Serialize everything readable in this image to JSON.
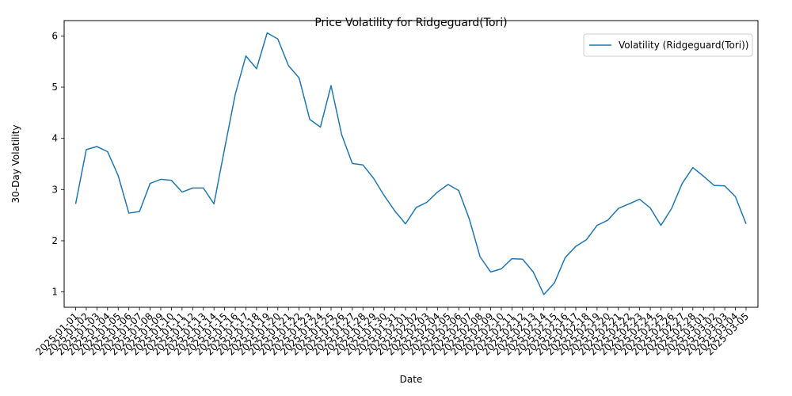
{
  "chart_data": {
    "type": "line",
    "title": "Price Volatility for Ridgeguard(Tori)",
    "xlabel": "Date",
    "ylabel": "30-Day Volatility",
    "ylim": [
      0.7,
      6.3
    ],
    "yticks": [
      1,
      2,
      3,
      4,
      5,
      6
    ],
    "grid": false,
    "legend_placement": "top-right",
    "x": [
      "2025-01-01",
      "2025-01-02",
      "2025-01-03",
      "2025-01-04",
      "2025-01-05",
      "2025-01-06",
      "2025-01-07",
      "2025-01-08",
      "2025-01-09",
      "2025-01-10",
      "2025-01-11",
      "2025-01-12",
      "2025-01-13",
      "2025-01-14",
      "2025-01-15",
      "2025-01-16",
      "2025-01-17",
      "2025-01-18",
      "2025-01-19",
      "2025-01-20",
      "2025-01-21",
      "2025-01-22",
      "2025-01-23",
      "2025-01-24",
      "2025-01-25",
      "2025-01-26",
      "2025-01-27",
      "2025-01-28",
      "2025-01-29",
      "2025-01-30",
      "2025-01-31",
      "2025-02-01",
      "2025-02-02",
      "2025-02-03",
      "2025-02-04",
      "2025-02-05",
      "2025-02-06",
      "2025-02-07",
      "2025-02-08",
      "2025-02-09",
      "2025-02-10",
      "2025-02-11",
      "2025-02-12",
      "2025-02-13",
      "2025-02-14",
      "2025-02-15",
      "2025-02-16",
      "2025-02-17",
      "2025-02-18",
      "2025-02-19",
      "2025-02-20",
      "2025-02-21",
      "2025-02-22",
      "2025-02-23",
      "2025-02-24",
      "2025-02-25",
      "2025-02-26",
      "2025-02-27",
      "2025-02-28",
      "2025-03-01",
      "2025-03-02",
      "2025-03-03",
      "2025-03-04",
      "2025-03-05"
    ],
    "series": [
      {
        "name": "Volatility (Ridgeguard(Tori))",
        "color": "#1f77b4",
        "values": [
          2.72,
          3.78,
          3.84,
          3.74,
          3.27,
          2.54,
          2.57,
          3.12,
          3.2,
          3.18,
          2.95,
          3.03,
          3.03,
          2.72,
          3.8,
          4.86,
          5.61,
          5.36,
          6.06,
          5.94,
          5.42,
          5.18,
          4.37,
          4.22,
          5.03,
          4.07,
          3.51,
          3.48,
          3.22,
          2.88,
          2.58,
          2.33,
          2.65,
          2.75,
          2.95,
          3.1,
          2.98,
          2.42,
          1.69,
          1.39,
          1.45,
          1.65,
          1.64,
          1.39,
          0.95,
          1.18,
          1.67,
          1.89,
          2.02,
          2.3,
          2.4,
          2.63,
          2.72,
          2.81,
          2.64,
          2.3,
          2.63,
          3.12,
          3.43,
          3.26,
          3.08,
          3.07,
          2.86,
          2.33
        ]
      }
    ]
  }
}
